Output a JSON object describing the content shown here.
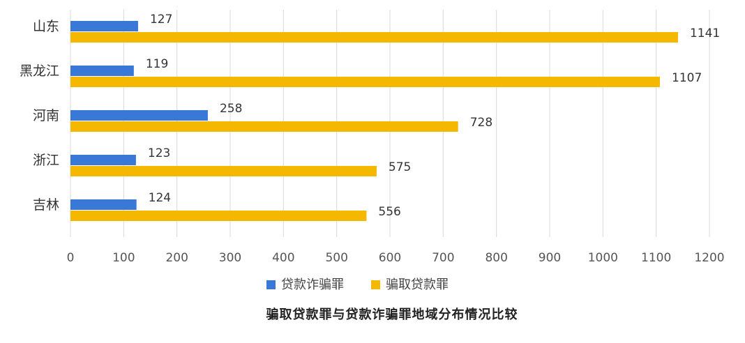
{
  "chart_data": {
    "type": "bar",
    "orientation": "horizontal",
    "categories": [
      "山东",
      "黑龙江",
      "河南",
      "浙江",
      "吉林"
    ],
    "series": [
      {
        "name": "贷款诈骗罪",
        "values": [
          127,
          119,
          258,
          123,
          124
        ],
        "color": "#3a78d8"
      },
      {
        "name": "骗取贷款罪",
        "values": [
          1141,
          1107,
          728,
          575,
          556
        ],
        "color": "#f5b800"
      }
    ],
    "xlim": [
      0,
      1200
    ],
    "xticks": [
      0,
      100,
      200,
      300,
      400,
      500,
      600,
      700,
      800,
      900,
      1000,
      1100,
      1200
    ],
    "grid": true,
    "legend_position": "bottom",
    "caption": "骗取贷款罪与贷款诈骗罪地域分布情况比较"
  }
}
